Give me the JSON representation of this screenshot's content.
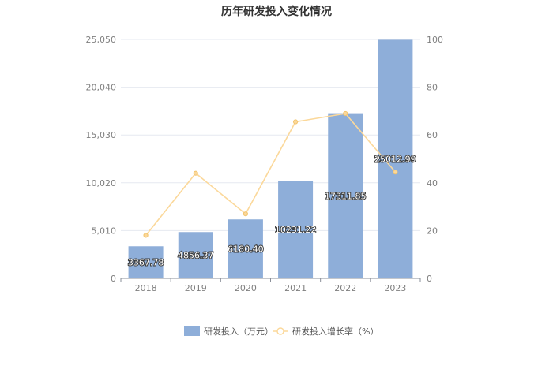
{
  "chart_data": {
    "type": "bar",
    "title": "历年研发投入变化情况",
    "categories": [
      "2018",
      "2019",
      "2020",
      "2021",
      "2022",
      "2023"
    ],
    "series": [
      {
        "name": "研发投入（万元）",
        "type": "bar",
        "axis": "left",
        "color": "#8eaed9",
        "values": [
          3367.78,
          4856.37,
          6180.4,
          10231.22,
          17311.85,
          25012.99
        ],
        "labels": [
          "3367.78",
          "4856.37",
          "6180.40",
          "10231.22",
          "17311.85",
          "25012.99"
        ]
      },
      {
        "name": "研发投入增长率（%）",
        "type": "line",
        "axis": "right",
        "color": "#fbd89a",
        "values": [
          18,
          44,
          27,
          65.5,
          69,
          44.5
        ]
      }
    ],
    "y_left": {
      "min": 0,
      "max": 25050,
      "ticks": [
        0,
        5010,
        10020,
        15030,
        20040,
        25050
      ],
      "tick_labels": [
        "0",
        "5,010",
        "10,020",
        "15,030",
        "20,040",
        "25,050"
      ]
    },
    "y_right": {
      "min": 0,
      "max": 100,
      "ticks": [
        0,
        20,
        40,
        60,
        80,
        100
      ],
      "tick_labels": [
        "0",
        "20",
        "40",
        "60",
        "80",
        "100"
      ]
    },
    "grid": true,
    "legend_position": "bottom-center"
  }
}
